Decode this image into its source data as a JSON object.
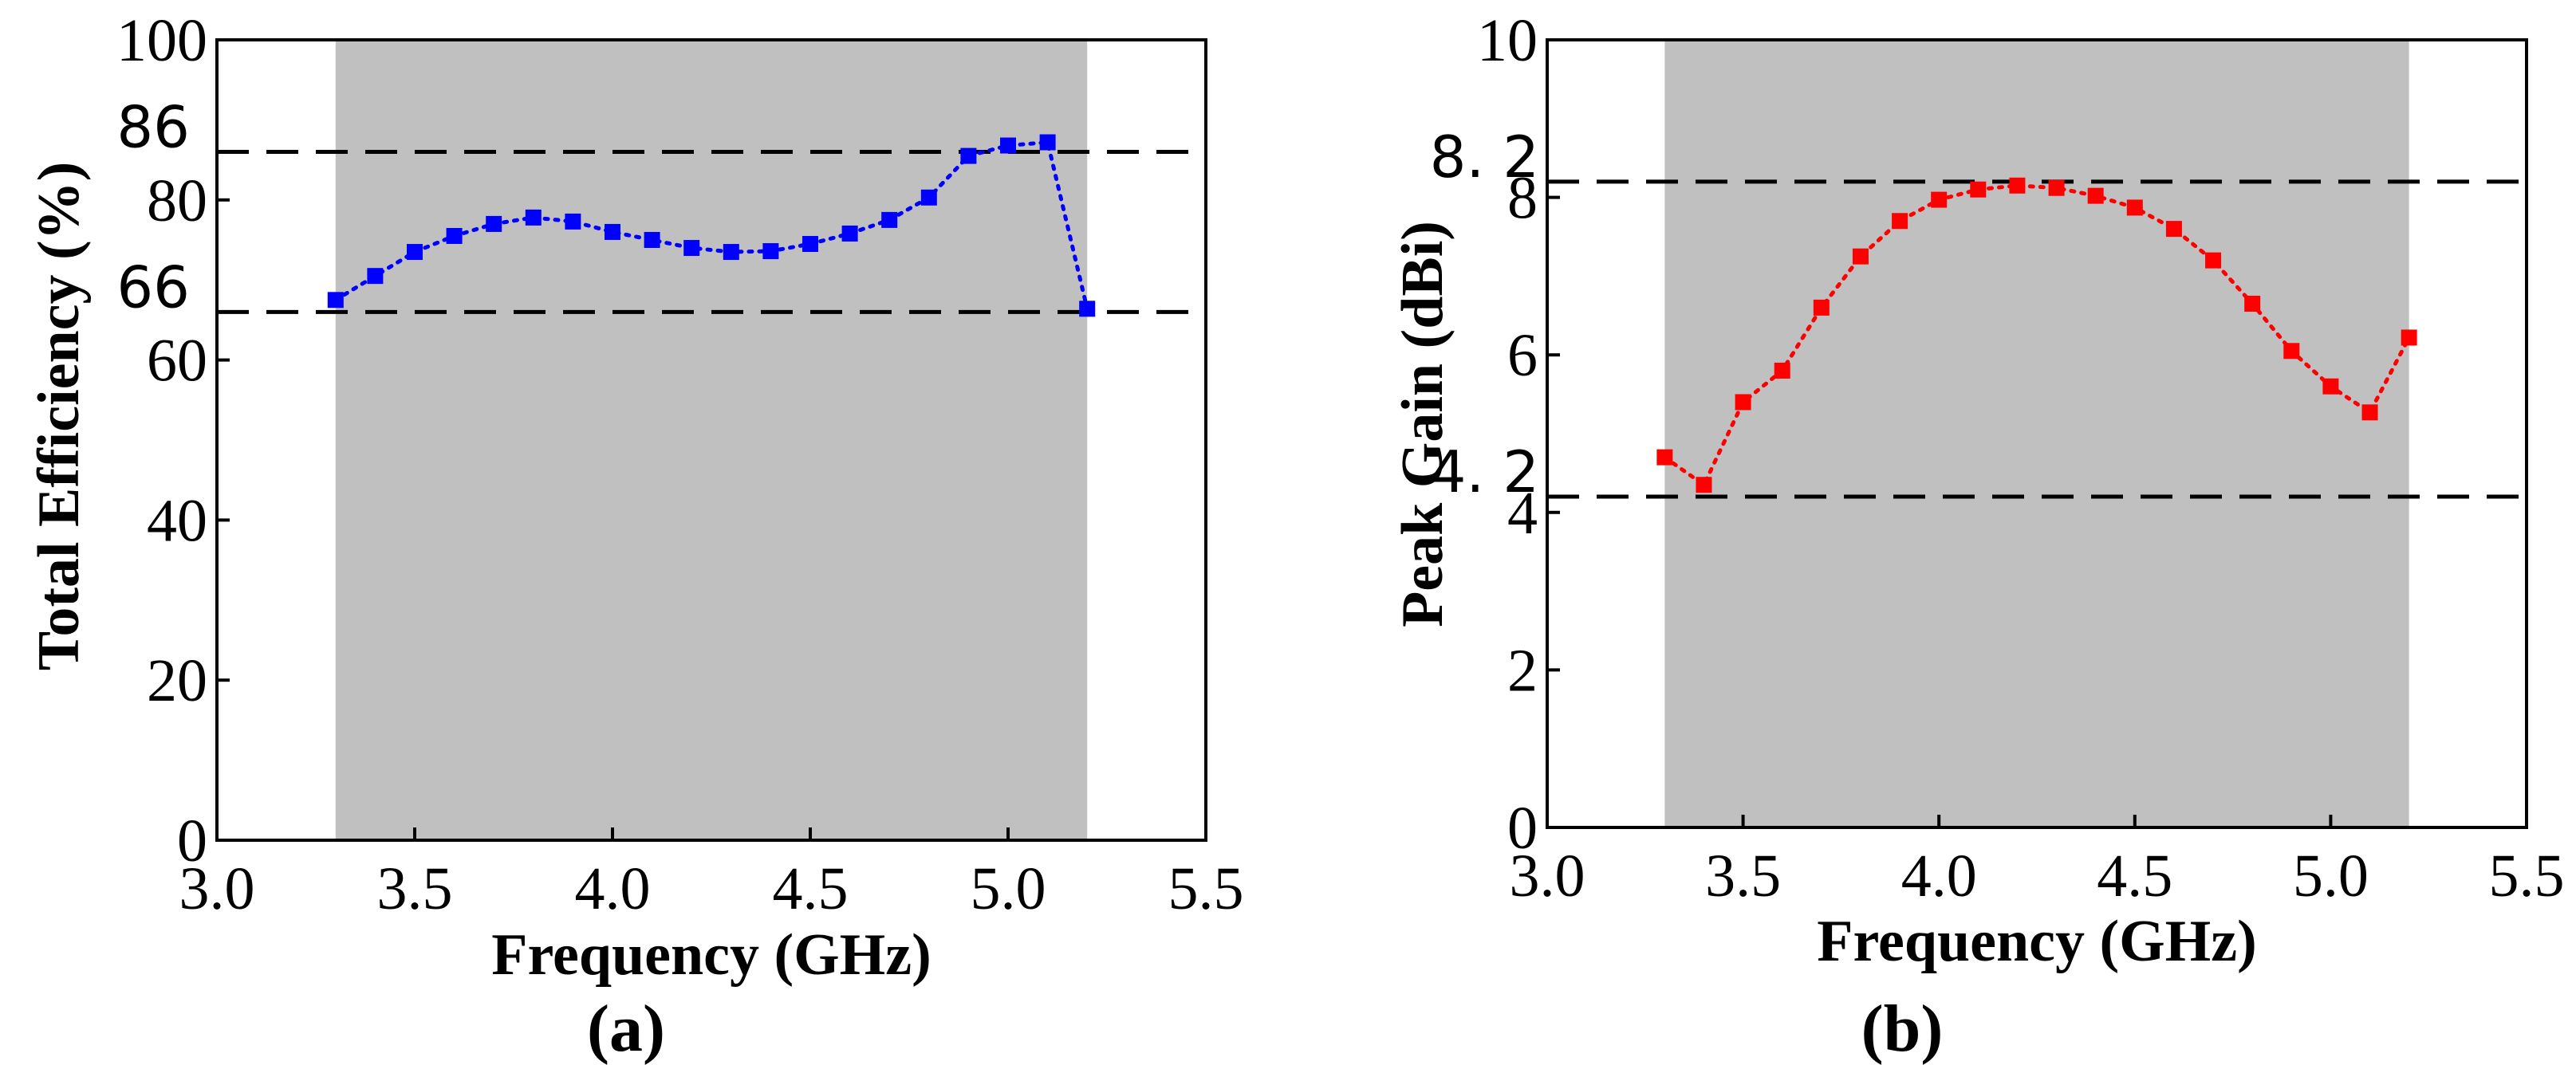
{
  "chart_data": [
    {
      "type": "line",
      "panel_caption": "(a)",
      "xlabel": "Frequency (GHz)",
      "ylabel": "Total Efficiency (%)",
      "xlim": [
        3.0,
        5.5
      ],
      "ylim": [
        0,
        100
      ],
      "xticks": [
        "3.0",
        "3.5",
        "4.0",
        "4.5",
        "5.0",
        "5.5"
      ],
      "yticks": [
        "0",
        "20",
        "40",
        "60",
        "80",
        "100"
      ],
      "shaded_band": [
        3.3,
        5.2
      ],
      "reference_lines": [
        {
          "value": 86,
          "label": "86"
        },
        {
          "value": 66,
          "label": "66"
        }
      ],
      "series": [
        {
          "name": "Total Efficiency",
          "color": "#0000ff",
          "marker": "square",
          "line_style": "dotted",
          "x": [
            3.3,
            3.4,
            3.5,
            3.6,
            3.7,
            3.8,
            3.9,
            4.0,
            4.1,
            4.2,
            4.3,
            4.4,
            4.5,
            4.6,
            4.7,
            4.8,
            4.9,
            5.0,
            5.1,
            5.2
          ],
          "y": [
            67.5,
            70.5,
            73.5,
            75.5,
            77,
            77.8,
            77.3,
            76,
            75,
            74,
            73.5,
            73.6,
            74.5,
            75.8,
            77.5,
            80.3,
            85.5,
            86.8,
            87.2,
            66.4
          ]
        }
      ]
    },
    {
      "type": "line",
      "panel_caption": "(b)",
      "xlabel": "Frequency (GHz)",
      "ylabel": "Peak Gain (dBi)",
      "xlim": [
        3.0,
        5.5
      ],
      "ylim": [
        0,
        10
      ],
      "xticks": [
        "3.0",
        "3.5",
        "4.0",
        "4.5",
        "5.0",
        "5.5"
      ],
      "yticks": [
        "0",
        "2",
        "4",
        "6",
        "8",
        "10"
      ],
      "shaded_band": [
        3.3,
        5.2
      ],
      "reference_lines": [
        {
          "value": 8.2,
          "label": "8. 2"
        },
        {
          "value": 4.2,
          "label": "4. 2"
        }
      ],
      "series": [
        {
          "name": "Peak Gain",
          "color": "#ff0000",
          "marker": "square",
          "line_style": "dotted",
          "x": [
            3.3,
            3.4,
            3.5,
            3.6,
            3.7,
            3.8,
            3.9,
            4.0,
            4.1,
            4.2,
            4.3,
            4.4,
            4.5,
            4.6,
            4.7,
            4.8,
            4.9,
            5.0,
            5.1,
            5.2
          ],
          "y": [
            4.7,
            4.35,
            5.4,
            5.8,
            6.6,
            7.25,
            7.7,
            7.97,
            8.1,
            8.15,
            8.12,
            8.02,
            7.87,
            7.6,
            7.2,
            6.65,
            6.05,
            5.6,
            5.27,
            6.22
          ]
        }
      ]
    }
  ]
}
